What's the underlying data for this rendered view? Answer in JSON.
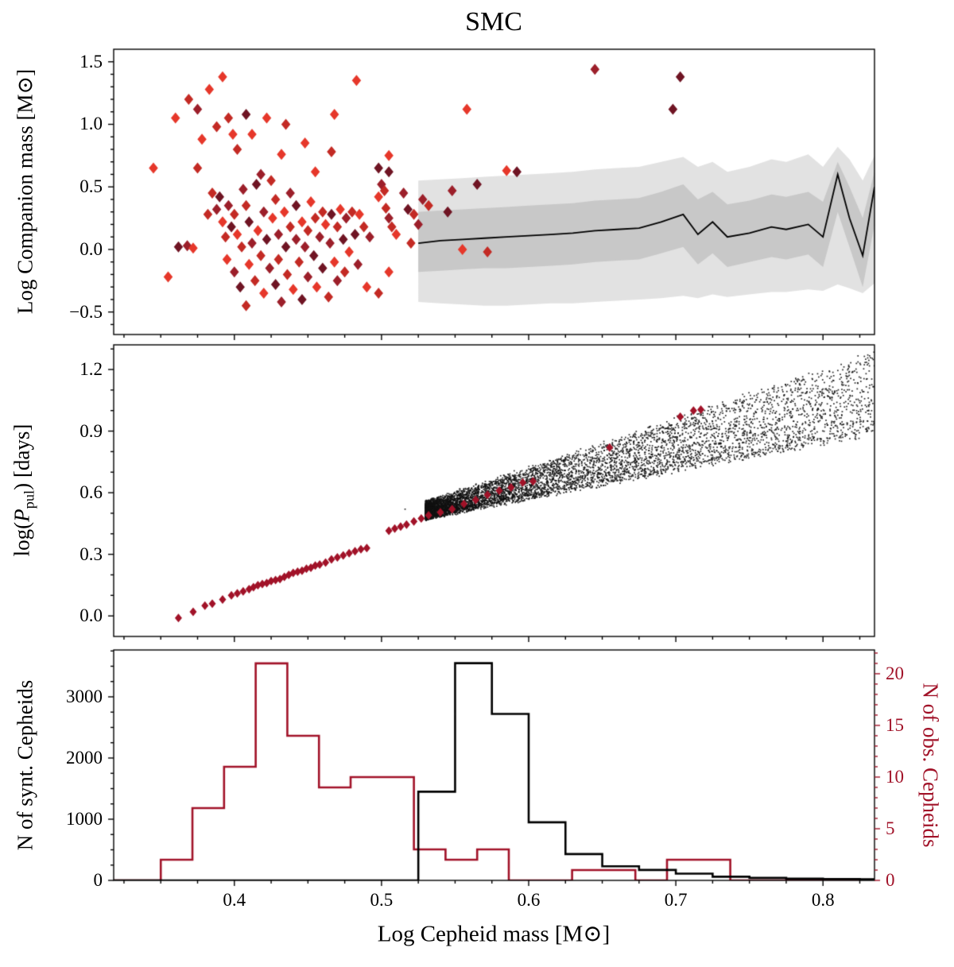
{
  "title": "SMC",
  "colors": {
    "obs_red": "#a11228",
    "synt_black": "#000000",
    "band_outer": "#e2e2e2",
    "band_inner": "#c8c8c8",
    "cloud_black": "#111111",
    "diamond_palette": [
      "#f2523e",
      "#e6372a",
      "#c32a24",
      "#9c1f2a",
      "#6f1423"
    ]
  },
  "chart_data": [
    {
      "type": "scatter",
      "panel": "companion-mass",
      "ylabel": "Log Companion mass [M⊙]",
      "ylim": [
        -0.68,
        1.6
      ],
      "yticks": [
        -0.5,
        0.0,
        0.5,
        1.0,
        1.5
      ],
      "marker": "D",
      "diamonds": [
        [
          0.345,
          0.65,
          1
        ],
        [
          0.36,
          1.05,
          1
        ],
        [
          0.369,
          1.2,
          2
        ],
        [
          0.375,
          1.12,
          3
        ],
        [
          0.378,
          0.88,
          1
        ],
        [
          0.383,
          1.28,
          1
        ],
        [
          0.388,
          0.98,
          2
        ],
        [
          0.392,
          1.38,
          1
        ],
        [
          0.396,
          1.05,
          2
        ],
        [
          0.399,
          0.92,
          1
        ],
        [
          0.402,
          0.8,
          2
        ],
        [
          0.408,
          1.08,
          4
        ],
        [
          0.412,
          0.92,
          1
        ],
        [
          0.418,
          0.6,
          3
        ],
        [
          0.422,
          1.05,
          1
        ],
        [
          0.435,
          1.0,
          2
        ],
        [
          0.432,
          0.76,
          1
        ],
        [
          0.448,
          0.85,
          1
        ],
        [
          0.455,
          0.62,
          1
        ],
        [
          0.483,
          1.35,
          1
        ],
        [
          0.468,
          1.08,
          1
        ],
        [
          0.466,
          0.78,
          2
        ],
        [
          0.505,
          0.75,
          1
        ],
        [
          0.558,
          1.12,
          1
        ],
        [
          0.498,
          0.65,
          4
        ],
        [
          0.5,
          0.52,
          3
        ],
        [
          0.502,
          0.47,
          2
        ],
        [
          0.498,
          0.42,
          1
        ],
        [
          0.503,
          0.33,
          2
        ],
        [
          0.505,
          0.25,
          3
        ],
        [
          0.507,
          0.18,
          2
        ],
        [
          0.51,
          0.12,
          1
        ],
        [
          0.515,
          0.45,
          3
        ],
        [
          0.518,
          0.32,
          4
        ],
        [
          0.522,
          0.28,
          2
        ],
        [
          0.525,
          0.2,
          3
        ],
        [
          0.52,
          0.05,
          2
        ],
        [
          0.528,
          0.4,
          3
        ],
        [
          0.532,
          0.35,
          2
        ],
        [
          0.505,
          0.62,
          4
        ],
        [
          0.505,
          -0.18,
          1
        ],
        [
          0.355,
          -0.22,
          1
        ],
        [
          0.362,
          0.02,
          4
        ],
        [
          0.368,
          0.03,
          3
        ],
        [
          0.372,
          0.01,
          1
        ],
        [
          0.375,
          0.65,
          2
        ],
        [
          0.382,
          0.28,
          2
        ],
        [
          0.385,
          0.45,
          2
        ],
        [
          0.388,
          0.32,
          3
        ],
        [
          0.39,
          0.42,
          4
        ],
        [
          0.392,
          0.22,
          1
        ],
        [
          0.394,
          0.1,
          2
        ],
        [
          0.395,
          -0.08,
          1
        ],
        [
          0.396,
          0.35,
          3
        ],
        [
          0.398,
          0.18,
          4
        ],
        [
          0.4,
          0.28,
          2
        ],
        [
          0.4,
          -0.18,
          3
        ],
        [
          0.402,
          0.12,
          1
        ],
        [
          0.404,
          -0.3,
          4
        ],
        [
          0.405,
          0.02,
          2
        ],
        [
          0.406,
          0.48,
          3
        ],
        [
          0.408,
          0.35,
          2
        ],
        [
          0.408,
          -0.45,
          2
        ],
        [
          0.41,
          0.22,
          4
        ],
        [
          0.41,
          -0.12,
          1
        ],
        [
          0.412,
          0.05,
          3
        ],
        [
          0.414,
          -0.25,
          2
        ],
        [
          0.415,
          0.52,
          4
        ],
        [
          0.416,
          0.15,
          1
        ],
        [
          0.418,
          -0.05,
          2
        ],
        [
          0.42,
          0.3,
          3
        ],
        [
          0.42,
          -0.35,
          1
        ],
        [
          0.422,
          0.08,
          4
        ],
        [
          0.424,
          -0.15,
          3
        ],
        [
          0.425,
          0.55,
          2
        ],
        [
          0.426,
          0.25,
          1
        ],
        [
          0.428,
          -0.28,
          4
        ],
        [
          0.428,
          0.4,
          2
        ],
        [
          0.43,
          0.12,
          3
        ],
        [
          0.43,
          -0.08,
          2
        ],
        [
          0.432,
          -0.42,
          3
        ],
        [
          0.434,
          0.3,
          1
        ],
        [
          0.435,
          0.02,
          4
        ],
        [
          0.436,
          -0.2,
          2
        ],
        [
          0.438,
          0.45,
          3
        ],
        [
          0.438,
          0.18,
          2
        ],
        [
          0.44,
          -0.32,
          1
        ],
        [
          0.442,
          0.08,
          3
        ],
        [
          0.442,
          0.35,
          4
        ],
        [
          0.444,
          -0.1,
          2
        ],
        [
          0.446,
          0.22,
          1
        ],
        [
          0.446,
          -0.4,
          4
        ],
        [
          0.448,
          0.02,
          3
        ],
        [
          0.45,
          0.15,
          2
        ],
        [
          0.45,
          -0.22,
          3
        ],
        [
          0.452,
          0.38,
          1
        ],
        [
          0.454,
          -0.05,
          4
        ],
        [
          0.455,
          0.25,
          2
        ],
        [
          0.456,
          -0.3,
          1
        ],
        [
          0.458,
          0.1,
          3
        ],
        [
          0.46,
          0.3,
          2
        ],
        [
          0.46,
          -0.15,
          4
        ],
        [
          0.462,
          0.2,
          1
        ],
        [
          0.464,
          -0.38,
          2
        ],
        [
          0.465,
          0.05,
          3
        ],
        [
          0.466,
          0.28,
          4
        ],
        [
          0.468,
          -0.1,
          1
        ],
        [
          0.47,
          0.18,
          2
        ],
        [
          0.47,
          -0.25,
          3
        ],
        [
          0.472,
          0.32,
          1
        ],
        [
          0.474,
          0.08,
          4
        ],
        [
          0.475,
          -0.18,
          2
        ],
        [
          0.476,
          0.25,
          3
        ],
        [
          0.478,
          -0.02,
          1
        ],
        [
          0.48,
          0.3,
          2
        ],
        [
          0.482,
          0.12,
          4
        ],
        [
          0.484,
          -0.12,
          3
        ],
        [
          0.485,
          0.28,
          1
        ],
        [
          0.488,
          0.18,
          2
        ],
        [
          0.49,
          -0.3,
          1
        ],
        [
          0.492,
          0.1,
          3
        ],
        [
          0.498,
          -0.35,
          2
        ],
        [
          0.545,
          0.3,
          4
        ],
        [
          0.548,
          0.47,
          3
        ],
        [
          0.555,
          0.0,
          1
        ],
        [
          0.565,
          0.52,
          4
        ],
        [
          0.572,
          -0.02,
          2
        ],
        [
          0.585,
          0.63,
          1
        ],
        [
          0.592,
          0.62,
          4
        ],
        [
          0.645,
          1.44,
          3
        ],
        [
          0.703,
          1.38,
          4
        ],
        [
          0.698,
          1.12,
          4
        ]
      ],
      "median_line": {
        "x": [
          0.525,
          0.54,
          0.555,
          0.57,
          0.585,
          0.6,
          0.615,
          0.63,
          0.645,
          0.66,
          0.675,
          0.69,
          0.705,
          0.715,
          0.725,
          0.735,
          0.75,
          0.765,
          0.775,
          0.79,
          0.8,
          0.81,
          0.818,
          0.827,
          0.835
        ],
        "median": [
          0.05,
          0.07,
          0.08,
          0.09,
          0.1,
          0.11,
          0.12,
          0.13,
          0.15,
          0.16,
          0.17,
          0.22,
          0.28,
          0.12,
          0.22,
          0.1,
          0.13,
          0.18,
          0.16,
          0.2,
          0.1,
          0.6,
          0.25,
          -0.05,
          0.5
        ],
        "inner_hi": [
          0.3,
          0.31,
          0.32,
          0.33,
          0.34,
          0.35,
          0.36,
          0.37,
          0.39,
          0.4,
          0.41,
          0.46,
          0.52,
          0.4,
          0.46,
          0.36,
          0.39,
          0.44,
          0.42,
          0.46,
          0.38,
          0.7,
          0.5,
          0.25,
          0.62
        ],
        "inner_lo": [
          -0.18,
          -0.17,
          -0.16,
          -0.15,
          -0.15,
          -0.14,
          -0.13,
          -0.12,
          -0.1,
          -0.09,
          -0.08,
          -0.03,
          0.02,
          -0.12,
          -0.03,
          -0.14,
          -0.1,
          -0.06,
          -0.08,
          -0.04,
          -0.14,
          0.3,
          0.02,
          -0.3,
          0.2
        ],
        "outer_hi": [
          0.55,
          0.56,
          0.57,
          0.58,
          0.59,
          0.6,
          0.61,
          0.62,
          0.64,
          0.65,
          0.66,
          0.7,
          0.74,
          0.66,
          0.7,
          0.62,
          0.66,
          0.72,
          0.7,
          0.76,
          0.66,
          0.82,
          0.72,
          0.55,
          0.75
        ],
        "outer_lo": [
          -0.42,
          -0.43,
          -0.44,
          -0.45,
          -0.45,
          -0.44,
          -0.43,
          -0.43,
          -0.42,
          -0.41,
          -0.4,
          -0.39,
          -0.37,
          -0.39,
          -0.36,
          -0.38,
          -0.36,
          -0.34,
          -0.34,
          -0.32,
          -0.33,
          -0.28,
          -0.31,
          -0.35,
          -0.27
        ]
      }
    },
    {
      "type": "scatter",
      "panel": "pulsation-period",
      "ylabel_parts": [
        "log(",
        "P",
        "pul",
        ") [days]"
      ],
      "ylim": [
        -0.1,
        1.32
      ],
      "yticks": [
        0.0,
        0.3,
        0.6,
        0.9,
        1.2
      ],
      "obs_points": [
        [
          0.362,
          -0.01
        ],
        [
          0.372,
          0.02
        ],
        [
          0.38,
          0.05
        ],
        [
          0.385,
          0.06
        ],
        [
          0.392,
          0.08
        ],
        [
          0.398,
          0.1
        ],
        [
          0.402,
          0.11
        ],
        [
          0.406,
          0.12
        ],
        [
          0.41,
          0.13
        ],
        [
          0.413,
          0.14
        ],
        [
          0.416,
          0.15
        ],
        [
          0.419,
          0.155
        ],
        [
          0.422,
          0.16
        ],
        [
          0.425,
          0.17
        ],
        [
          0.428,
          0.175
        ],
        [
          0.431,
          0.18
        ],
        [
          0.434,
          0.19
        ],
        [
          0.437,
          0.2
        ],
        [
          0.44,
          0.21
        ],
        [
          0.443,
          0.215
        ],
        [
          0.446,
          0.22
        ],
        [
          0.449,
          0.23
        ],
        [
          0.452,
          0.235
        ],
        [
          0.455,
          0.245
        ],
        [
          0.458,
          0.25
        ],
        [
          0.462,
          0.26
        ],
        [
          0.466,
          0.275
        ],
        [
          0.47,
          0.285
        ],
        [
          0.474,
          0.295
        ],
        [
          0.478,
          0.305
        ],
        [
          0.482,
          0.315
        ],
        [
          0.486,
          0.325
        ],
        [
          0.49,
          0.33
        ],
        [
          0.505,
          0.415
        ],
        [
          0.509,
          0.425
        ],
        [
          0.513,
          0.435
        ],
        [
          0.517,
          0.445
        ],
        [
          0.522,
          0.46
        ],
        [
          0.527,
          0.475
        ],
        [
          0.532,
          0.49
        ],
        [
          0.54,
          0.505
        ],
        [
          0.548,
          0.52
        ],
        [
          0.556,
          0.545
        ],
        [
          0.564,
          0.565
        ],
        [
          0.572,
          0.59
        ],
        [
          0.58,
          0.61
        ],
        [
          0.588,
          0.625
        ],
        [
          0.596,
          0.65
        ],
        [
          0.603,
          0.655
        ],
        [
          0.655,
          0.82
        ],
        [
          0.703,
          0.97
        ],
        [
          0.712,
          1.0
        ],
        [
          0.717,
          1.005
        ]
      ],
      "cloud": {
        "seed": 77,
        "n": 6500,
        "x0": 0.53,
        "xspan": 0.305,
        "xpow": 2.2,
        "lo_a": 0.48,
        "lo_b": 1.35,
        "hi_a": 0.55,
        "hi_b": 2.4,
        "hi_cap": 1.28,
        "ypow": 1.3,
        "jitter": 0.03
      },
      "extra_points": [
        [
          0.516,
          0.52
        ]
      ]
    },
    {
      "type": "histogram",
      "panel": "mass-histograms",
      "xlabel": "Log Cepheid mass [M⊙]",
      "ylabel_left": "N of synt. Cepheids",
      "ylabel_right": "N of obs. Cepheids",
      "xlim": [
        0.318,
        0.835
      ],
      "xticks": [
        0.4,
        0.5,
        0.6,
        0.7,
        0.8
      ],
      "left": {
        "ylim": [
          0,
          3766
        ],
        "yticks": [
          0,
          1000,
          2000,
          3000
        ],
        "edges": [
          0.525,
          0.55,
          0.575,
          0.6,
          0.625,
          0.65,
          0.675,
          0.7,
          0.725,
          0.75,
          0.775,
          0.8,
          0.825,
          0.835
        ],
        "counts": [
          1450,
          3550,
          2720,
          950,
          430,
          230,
          170,
          110,
          60,
          40,
          30,
          22,
          18
        ]
      },
      "right": {
        "ylim": [
          0,
          22.3
        ],
        "yticks": [
          0,
          5,
          10,
          15,
          20
        ],
        "edges": [
          0.35,
          0.3715,
          0.393,
          0.4145,
          0.436,
          0.4575,
          0.479,
          0.5005,
          0.522,
          0.5435,
          0.565,
          0.5865,
          0.608,
          0.6295,
          0.651,
          0.6725,
          0.694,
          0.7155,
          0.737
        ],
        "counts": [
          2,
          7,
          11,
          21,
          14,
          9,
          10,
          10,
          3,
          2,
          3,
          0,
          0,
          1,
          1,
          0,
          2,
          2
        ]
      }
    }
  ]
}
